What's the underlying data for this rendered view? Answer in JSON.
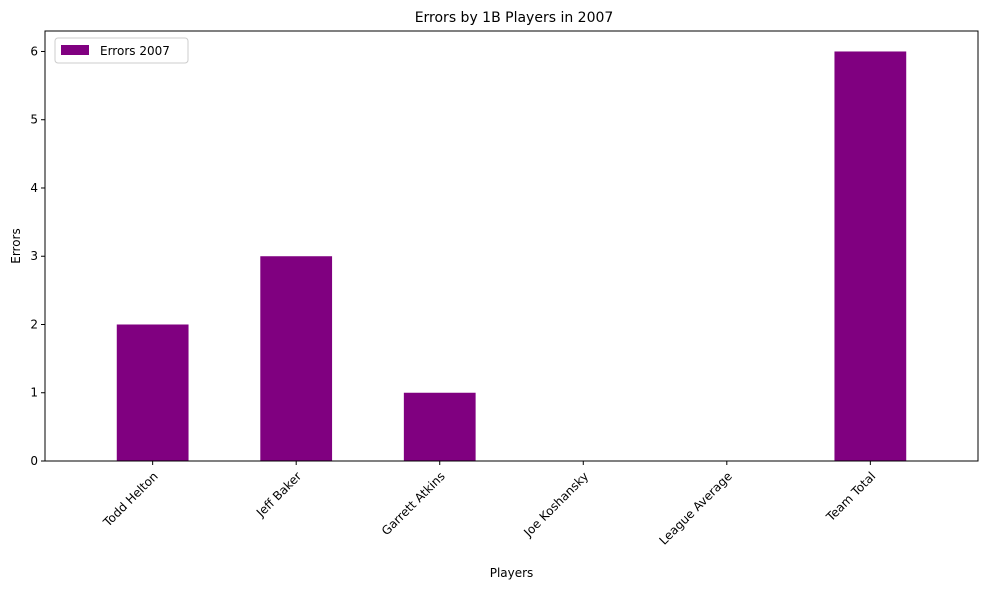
{
  "chart_data": {
    "type": "bar",
    "title": "Errors by 1B Players in 2007",
    "xlabel": "Players",
    "ylabel": "Errors",
    "categories": [
      "Todd Helton",
      "Jeff Baker",
      "Garrett Atkins",
      "Joe Koshansky",
      "League Average",
      "Team Total"
    ],
    "series": [
      {
        "name": "Errors 2007",
        "values": [
          2,
          3,
          1,
          0,
          0,
          6
        ],
        "color": "#800080"
      }
    ],
    "ylim": [
      0,
      6.3
    ],
    "yticks": [
      0,
      1,
      2,
      3,
      4,
      5,
      6
    ],
    "grid": false,
    "legend_position": "top-left",
    "xtick_rotation": -45
  }
}
